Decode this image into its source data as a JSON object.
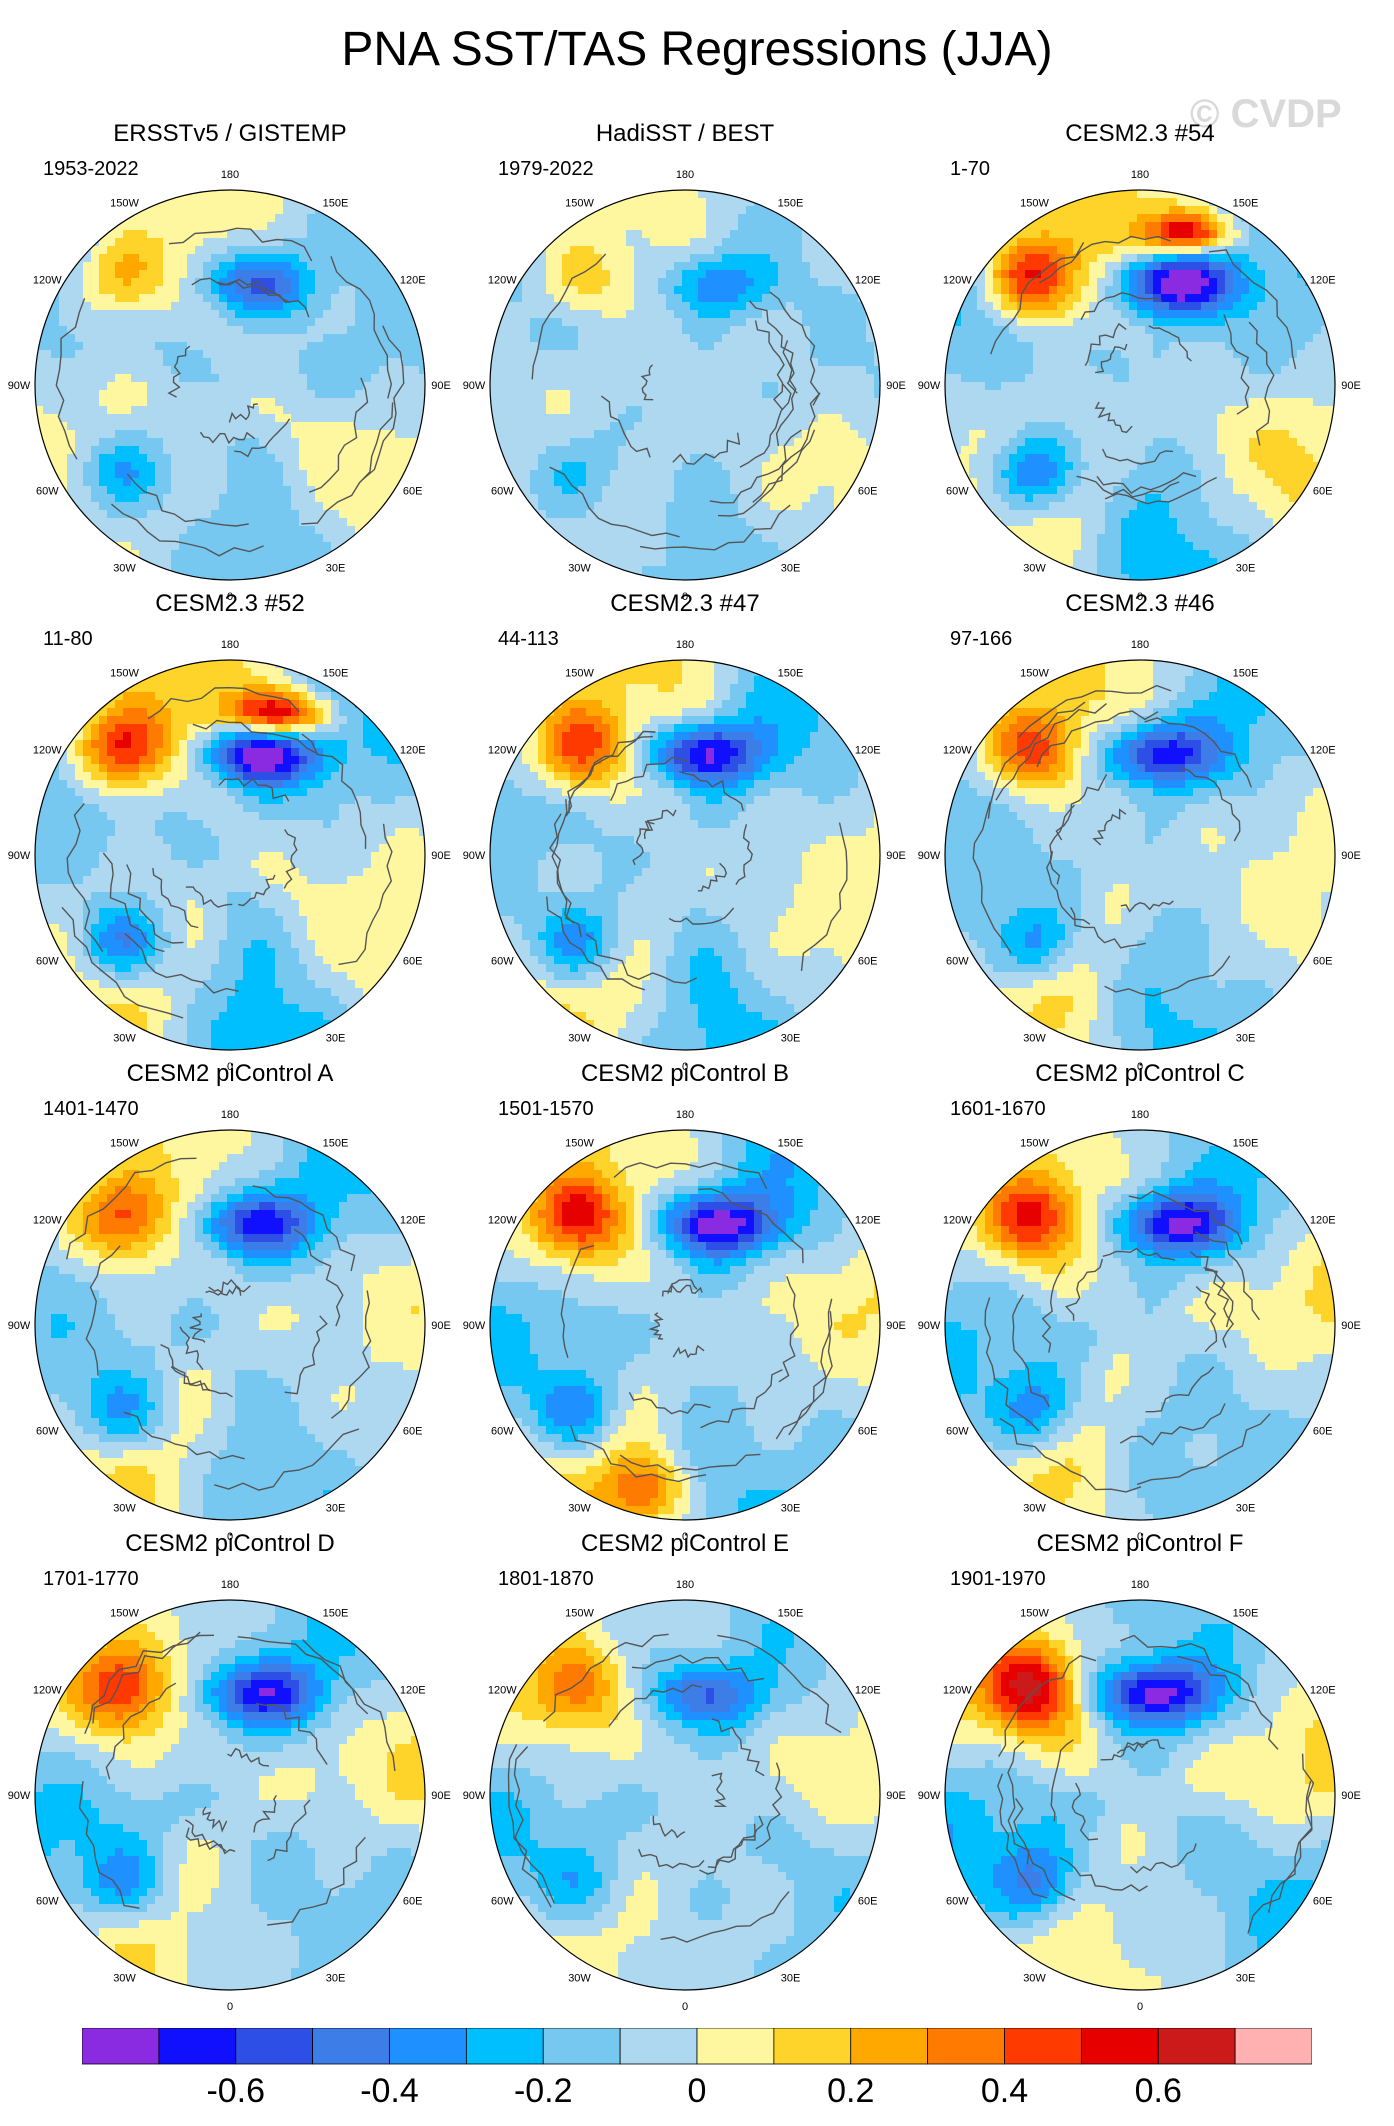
{
  "title": "PNA SST/TAS Regressions (JJA)",
  "watermark": "© CVDP",
  "longitude_labels": [
    "180",
    "150E",
    "120E",
    "90E",
    "60E",
    "30E",
    "0",
    "30W",
    "60W",
    "90W",
    "120W",
    "150W"
  ],
  "panels": [
    {
      "title": "ERSSTv5 / GISTEMP",
      "period": "1953-2022",
      "amp": 0.45,
      "variant": 0
    },
    {
      "title": "HadiSST / BEST",
      "period": "1979-2022",
      "amp": 0.3,
      "variant": 1
    },
    {
      "title": "CESM2.3 #54",
      "period": "1-70",
      "amp": 0.75,
      "variant": 2
    },
    {
      "title": "CESM2.3 #52",
      "period": "11-80",
      "amp": 0.75,
      "variant": 3
    },
    {
      "title": "CESM2.3 #47",
      "period": "44-113",
      "amp": 0.65,
      "variant": 4
    },
    {
      "title": "CESM2.3 #46",
      "period": "97-166",
      "amp": 0.6,
      "variant": 5
    },
    {
      "title": "CESM2 piControl A",
      "period": "1401-1470",
      "amp": 0.55,
      "variant": 6
    },
    {
      "title": "CESM2 piControl B",
      "period": "1501-1570",
      "amp": 0.65,
      "variant": 7
    },
    {
      "title": "CESM2 piControl C",
      "period": "1601-1670",
      "amp": 0.6,
      "variant": 8
    },
    {
      "title": "CESM2 piControl D",
      "period": "1701-1770",
      "amp": 0.55,
      "variant": 9
    },
    {
      "title": "CESM2 piControl E",
      "period": "1801-1870",
      "amp": 0.4,
      "variant": 10
    },
    {
      "title": "CESM2 piControl F",
      "period": "1901-1970",
      "amp": 0.65,
      "variant": 11
    }
  ],
  "colorbar": {
    "colors": [
      "#8a2be2",
      "#1010ff",
      "#2e4fe6",
      "#3c7de8",
      "#1e90ff",
      "#00bfff",
      "#76c8f0",
      "#add8f0",
      "#fff6a0",
      "#ffd42a",
      "#ffa800",
      "#ff7a00",
      "#ff3a00",
      "#e60000",
      "#cc1a1a",
      "#ffb0b0"
    ],
    "labels": [
      "-0.6",
      "-0.4",
      "-0.2",
      "0",
      "0.2",
      "0.4",
      "0.6"
    ],
    "label_values": [
      -0.6,
      -0.4,
      -0.2,
      0,
      0.2,
      0.4,
      0.6
    ],
    "levels": [
      -0.7,
      -0.6,
      -0.5,
      -0.4,
      -0.3,
      -0.2,
      -0.1,
      0,
      0.1,
      0.2,
      0.3,
      0.4,
      0.5,
      0.6,
      0.7
    ]
  }
}
